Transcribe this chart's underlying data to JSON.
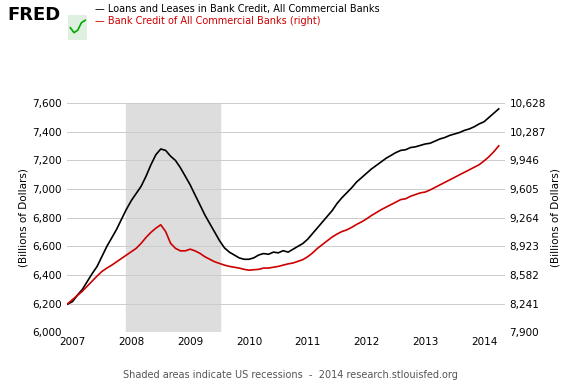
{
  "legend_line1": "— Loans and Leases in Bank Credit, All Commercial Banks",
  "legend_line2": "— Bank Credit of All Commercial Banks (right)",
  "ylabel_left": "(Billions of Dollars)",
  "ylabel_right": "(Billions of Dollars)",
  "footnote": "Shaded areas indicate US recessions  -  2014 research.stlouisfed.org",
  "ylim_left": [
    6000,
    7600
  ],
  "ylim_right": [
    7900,
    10628
  ],
  "yticks_left": [
    6000,
    6200,
    6400,
    6600,
    6800,
    7000,
    7200,
    7400,
    7600
  ],
  "yticks_right": [
    7900,
    8241,
    8582,
    8923,
    9264,
    9605,
    9946,
    10287,
    10628
  ],
  "recession_start": 2007.917,
  "recession_end": 2009.5,
  "recession_color": "#dddddd",
  "line1_color": "#000000",
  "line2_color": "#cc0000",
  "background_color": "#ffffff",
  "grid_color": "#cccccc",
  "xlim": [
    2006.9,
    2014.35
  ],
  "xticks": [
    2007,
    2008,
    2009,
    2010,
    2011,
    2012,
    2013,
    2014
  ],
  "loans_data": [
    [
      2006.917,
      6197
    ],
    [
      2007.0,
      6215
    ],
    [
      2007.083,
      6260
    ],
    [
      2007.167,
      6300
    ],
    [
      2007.25,
      6355
    ],
    [
      2007.333,
      6410
    ],
    [
      2007.417,
      6460
    ],
    [
      2007.5,
      6530
    ],
    [
      2007.583,
      6600
    ],
    [
      2007.667,
      6660
    ],
    [
      2007.75,
      6720
    ],
    [
      2007.833,
      6790
    ],
    [
      2007.917,
      6860
    ],
    [
      2008.0,
      6920
    ],
    [
      2008.083,
      6970
    ],
    [
      2008.167,
      7020
    ],
    [
      2008.25,
      7090
    ],
    [
      2008.333,
      7170
    ],
    [
      2008.417,
      7240
    ],
    [
      2008.5,
      7280
    ],
    [
      2008.583,
      7270
    ],
    [
      2008.667,
      7230
    ],
    [
      2008.75,
      7200
    ],
    [
      2008.833,
      7150
    ],
    [
      2008.917,
      7090
    ],
    [
      2009.0,
      7030
    ],
    [
      2009.083,
      6960
    ],
    [
      2009.167,
      6890
    ],
    [
      2009.25,
      6820
    ],
    [
      2009.333,
      6760
    ],
    [
      2009.417,
      6700
    ],
    [
      2009.5,
      6640
    ],
    [
      2009.583,
      6590
    ],
    [
      2009.667,
      6560
    ],
    [
      2009.75,
      6540
    ],
    [
      2009.833,
      6520
    ],
    [
      2009.917,
      6510
    ],
    [
      2010.0,
      6510
    ],
    [
      2010.083,
      6520
    ],
    [
      2010.167,
      6540
    ],
    [
      2010.25,
      6550
    ],
    [
      2010.333,
      6545
    ],
    [
      2010.417,
      6560
    ],
    [
      2010.5,
      6555
    ],
    [
      2010.583,
      6570
    ],
    [
      2010.667,
      6560
    ],
    [
      2010.75,
      6580
    ],
    [
      2010.833,
      6600
    ],
    [
      2010.917,
      6620
    ],
    [
      2011.0,
      6650
    ],
    [
      2011.083,
      6690
    ],
    [
      2011.167,
      6730
    ],
    [
      2011.25,
      6770
    ],
    [
      2011.333,
      6810
    ],
    [
      2011.417,
      6850
    ],
    [
      2011.5,
      6900
    ],
    [
      2011.583,
      6940
    ],
    [
      2011.667,
      6975
    ],
    [
      2011.75,
      7010
    ],
    [
      2011.833,
      7050
    ],
    [
      2011.917,
      7080
    ],
    [
      2012.0,
      7110
    ],
    [
      2012.083,
      7140
    ],
    [
      2012.167,
      7165
    ],
    [
      2012.25,
      7190
    ],
    [
      2012.333,
      7215
    ],
    [
      2012.417,
      7235
    ],
    [
      2012.5,
      7255
    ],
    [
      2012.583,
      7270
    ],
    [
      2012.667,
      7275
    ],
    [
      2012.75,
      7290
    ],
    [
      2012.833,
      7295
    ],
    [
      2012.917,
      7305
    ],
    [
      2013.0,
      7315
    ],
    [
      2013.083,
      7320
    ],
    [
      2013.167,
      7335
    ],
    [
      2013.25,
      7350
    ],
    [
      2013.333,
      7360
    ],
    [
      2013.417,
      7375
    ],
    [
      2013.5,
      7385
    ],
    [
      2013.583,
      7395
    ],
    [
      2013.667,
      7410
    ],
    [
      2013.75,
      7420
    ],
    [
      2013.833,
      7435
    ],
    [
      2013.917,
      7455
    ],
    [
      2014.0,
      7470
    ],
    [
      2014.083,
      7500
    ],
    [
      2014.167,
      7530
    ],
    [
      2014.25,
      7560
    ]
  ],
  "credit_data": [
    [
      2006.917,
      8241
    ],
    [
      2007.0,
      8290
    ],
    [
      2007.083,
      8340
    ],
    [
      2007.167,
      8390
    ],
    [
      2007.25,
      8450
    ],
    [
      2007.333,
      8510
    ],
    [
      2007.417,
      8570
    ],
    [
      2007.5,
      8625
    ],
    [
      2007.583,
      8665
    ],
    [
      2007.667,
      8700
    ],
    [
      2007.75,
      8740
    ],
    [
      2007.833,
      8780
    ],
    [
      2007.917,
      8820
    ],
    [
      2008.0,
      8860
    ],
    [
      2008.083,
      8900
    ],
    [
      2008.167,
      8960
    ],
    [
      2008.25,
      9030
    ],
    [
      2008.333,
      9090
    ],
    [
      2008.417,
      9140
    ],
    [
      2008.5,
      9180
    ],
    [
      2008.583,
      9100
    ],
    [
      2008.667,
      8960
    ],
    [
      2008.75,
      8900
    ],
    [
      2008.833,
      8870
    ],
    [
      2008.917,
      8870
    ],
    [
      2009.0,
      8890
    ],
    [
      2009.083,
      8870
    ],
    [
      2009.167,
      8840
    ],
    [
      2009.25,
      8800
    ],
    [
      2009.333,
      8770
    ],
    [
      2009.417,
      8740
    ],
    [
      2009.5,
      8720
    ],
    [
      2009.583,
      8700
    ],
    [
      2009.667,
      8685
    ],
    [
      2009.75,
      8675
    ],
    [
      2009.833,
      8665
    ],
    [
      2009.917,
      8650
    ],
    [
      2010.0,
      8640
    ],
    [
      2010.083,
      8645
    ],
    [
      2010.167,
      8650
    ],
    [
      2010.25,
      8665
    ],
    [
      2010.333,
      8665
    ],
    [
      2010.417,
      8675
    ],
    [
      2010.5,
      8685
    ],
    [
      2010.583,
      8700
    ],
    [
      2010.667,
      8715
    ],
    [
      2010.75,
      8725
    ],
    [
      2010.833,
      8745
    ],
    [
      2010.917,
      8765
    ],
    [
      2011.0,
      8800
    ],
    [
      2011.083,
      8845
    ],
    [
      2011.167,
      8900
    ],
    [
      2011.25,
      8945
    ],
    [
      2011.333,
      8990
    ],
    [
      2011.417,
      9035
    ],
    [
      2011.5,
      9070
    ],
    [
      2011.583,
      9100
    ],
    [
      2011.667,
      9120
    ],
    [
      2011.75,
      9150
    ],
    [
      2011.833,
      9185
    ],
    [
      2011.917,
      9215
    ],
    [
      2012.0,
      9250
    ],
    [
      2012.083,
      9290
    ],
    [
      2012.167,
      9325
    ],
    [
      2012.25,
      9360
    ],
    [
      2012.333,
      9390
    ],
    [
      2012.417,
      9420
    ],
    [
      2012.5,
      9450
    ],
    [
      2012.583,
      9480
    ],
    [
      2012.667,
      9490
    ],
    [
      2012.75,
      9520
    ],
    [
      2012.833,
      9540
    ],
    [
      2012.917,
      9560
    ],
    [
      2013.0,
      9570
    ],
    [
      2013.083,
      9595
    ],
    [
      2013.167,
      9625
    ],
    [
      2013.25,
      9655
    ],
    [
      2013.333,
      9685
    ],
    [
      2013.417,
      9715
    ],
    [
      2013.5,
      9745
    ],
    [
      2013.583,
      9775
    ],
    [
      2013.667,
      9805
    ],
    [
      2013.75,
      9835
    ],
    [
      2013.833,
      9865
    ],
    [
      2013.917,
      9895
    ],
    [
      2014.0,
      9940
    ],
    [
      2014.083,
      9990
    ],
    [
      2014.167,
      10050
    ],
    [
      2014.25,
      10120
    ]
  ]
}
